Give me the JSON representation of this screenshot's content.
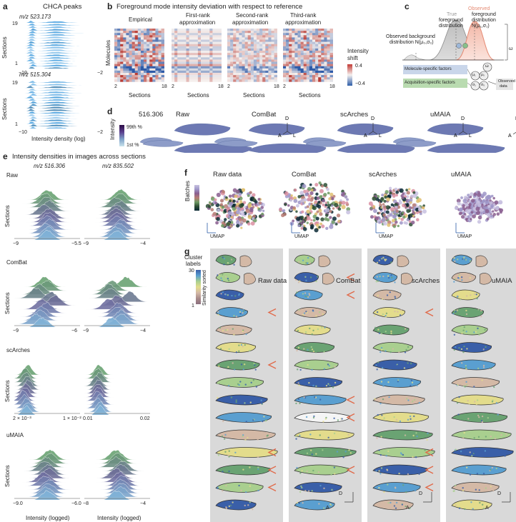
{
  "panel_letters": [
    "a",
    "b",
    "c",
    "d",
    "e",
    "f",
    "g"
  ],
  "a": {
    "title": "CHCA peaks",
    "plots": [
      {
        "mz": "m/z 523.173",
        "y_top": "19",
        "y_bottom": "1",
        "ylabel": "Sections"
      },
      {
        "mz": "m/z 515.304",
        "y_top": "19",
        "y_bottom": "1",
        "ylabel": "Sections"
      }
    ],
    "x_ticks": [
      "−10",
      "−2"
    ],
    "xlabel": "Intensity density (log)"
  },
  "b": {
    "title": "Foreground mode intensity deviation with respect to reference",
    "headers": [
      "Empirical",
      "First-rank approximation",
      "Second-rank approximation",
      "Third-rank approximation"
    ],
    "header_lines": [
      [
        "Empirical"
      ],
      [
        "First-rank",
        "approximation"
      ],
      [
        "Second-rank",
        "approximation"
      ],
      [
        "Third-rank",
        "approximation"
      ]
    ],
    "ylabel": "Molecules",
    "xlabel": "Sections",
    "x_ticks": [
      "2",
      "18"
    ],
    "colorbar": {
      "label_1": "Intensity",
      "label_2": "shift",
      "max": "0.4",
      "min": "−0.4"
    }
  },
  "c": {
    "true_fg": [
      "True",
      "foreground",
      "distribution"
    ],
    "obs_fg": [
      "Observed",
      "foreground",
      "distribution",
      "N(μ₁,σ₁)"
    ],
    "obs_bg": [
      "Observed background",
      "distribution N(μ₀,σ₀)"
    ],
    "omega": "ω",
    "mol_factors": "Molecule-specific factors",
    "acq_factors": "Acquisition-specific factors",
    "observed_data": [
      "Observed",
      "data"
    ],
    "nodes": [
      "μ₁",
      "σ₁",
      "μ₀",
      "σ₀",
      "ω"
    ]
  },
  "d": {
    "mz": "516.306",
    "methods": [
      "Raw",
      "ComBat",
      "scArches",
      "uMAIA"
    ],
    "intensity": {
      "label": "Intensity",
      "top": "99th %",
      "bottom": "1st %"
    },
    "axes": {
      "d": "D",
      "a": "A",
      "l": "L"
    }
  },
  "e": {
    "title": "Intensity densities in images across sections",
    "mz_cols": [
      "m/z 516.306",
      "m/z 835.502"
    ],
    "ylabel": "Sections",
    "rows": [
      {
        "method": "Raw",
        "ticks_left": [
          "−9",
          "−5.5"
        ],
        "ticks_right": [
          "−9",
          "−4"
        ]
      },
      {
        "method": "ComBat",
        "ticks_left": [
          "−9",
          "−6"
        ],
        "ticks_right": [
          "−9",
          "−4"
        ]
      },
      {
        "method": "scArches",
        "ticks_left": [
          "2 × 10⁻³",
          "1 × 10⁻²"
        ],
        "ticks_right": [
          "0.01",
          "0.02"
        ]
      },
      {
        "method": "uMAIA",
        "ticks_left": [
          "−9.0",
          "−6.0"
        ],
        "ticks_right": [
          "−8",
          "−4"
        ]
      }
    ],
    "xlabel": "Intensity (logged)"
  },
  "f": {
    "methods": [
      "Raw data",
      "ComBat",
      "scArches",
      "uMAIA"
    ],
    "legend": "Batches",
    "axis_label": "UMAP"
  },
  "g": {
    "legend": {
      "title_1": "Cluster",
      "title_2": "labels",
      "max": "30",
      "min": "1",
      "side": "Similarity sorted"
    },
    "methods": [
      "Raw data",
      "ComBat",
      "scArches",
      "uMAIA"
    ],
    "axes": {
      "d": "D",
      "a": "A"
    }
  },
  "colors": {
    "green": "#6aa373",
    "purple": "#6e6a9c",
    "blue": "#7fb1d6",
    "red_arrow": "#e06a4a",
    "panel_gray": "#d9d9d9",
    "heat_red": "#c23a34",
    "heat_blue": "#2d5da8"
  }
}
